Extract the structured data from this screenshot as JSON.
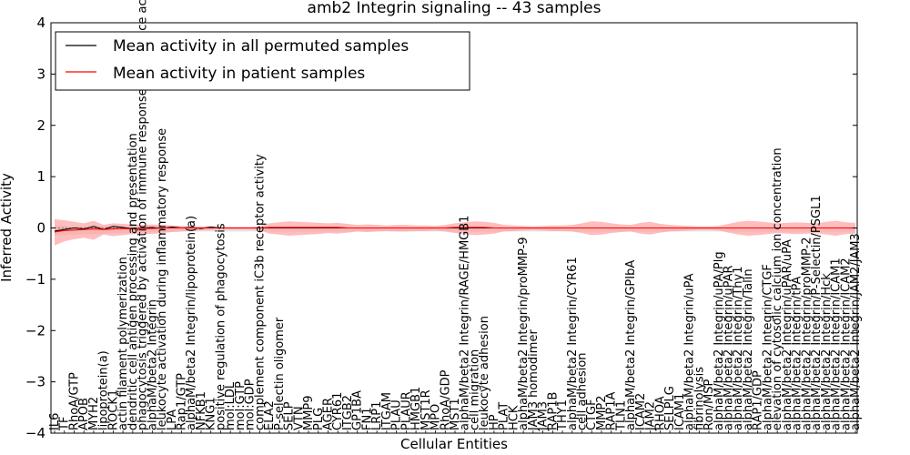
{
  "chart_data": {
    "type": "line",
    "title": "amb2 Integrin signaling -- 43 samples",
    "xlabel": "Cellular Entities",
    "ylabel": "Inferred Activity",
    "ylim": [
      -4,
      4
    ],
    "yticks": [
      -4,
      -3,
      -2,
      -1,
      0,
      1,
      2,
      3,
      4
    ],
    "ytick_labels": [
      "−4",
      "−3",
      "−2",
      "−1",
      "0",
      "1",
      "2",
      "3",
      "4"
    ],
    "legend_position": "top-left",
    "categories": [
      "IL6",
      "TF",
      "RhoA/GTP",
      "APOB",
      "MYH2",
      "lipoprotein(a)",
      "ROCK1",
      "actin filament polymerization",
      "dendritic cell antigen processing and presentation",
      "phagocytosis triggered by activation of immune response cell surface activating receptor",
      "alphaM/beta2 Integrin",
      "leukocyte activation during inflammatory response",
      "LPA",
      "Rap1/GTP",
      "alphaM/beta2 Integrin/lipoprotein(a)",
      "NFKB1",
      "KNG1",
      "positive regulation of phagocytosis",
      "mol:LDL",
      "mol:GTP",
      "mol:GDP",
      "complement component iC3b receptor activity",
      "ELA2",
      "P-selectin oligomer",
      "SELP",
      "VTN",
      "MMP9",
      "PLG",
      "AGER",
      "CYR61",
      "ITGB2",
      "GP1BA",
      "FN1",
      "LRP1",
      "ITGAM",
      "PLAU",
      "PLAUR",
      "HMGB1",
      "MST1R",
      "MPO",
      "RhoA/GDP",
      "MST1",
      "alphaM/beta2 Integrin/RAGE/HMGB1",
      "cell migration",
      "leukocyte adhesion",
      "HP",
      "PLAT",
      "HCK",
      "alphaM/beta2 Integrin/proMMP-9",
      "JAM3 homodimer",
      "JAM3",
      "RAP1B",
      "THY1",
      "alphaM/beta2 Integrin/CYR61",
      "cell adhesion",
      "CTGF",
      "MMP2",
      "RAP1A",
      "TLN1",
      "alphaM/beta2 Integrin/GPIbA",
      "ICAM2",
      "JAM2",
      "RHOA",
      "SELPLG",
      "ICAM1",
      "alphaM/beta2 Integrin/uPA",
      "fibrinolysis",
      "Ron/MSP",
      "alphaM/beta2 Integrin/uPA/Plg",
      "alphaM/beta2 Integrin/uPAR",
      "alphaM/beta2 Integrin/Thy1",
      "alphaM/beta2 Integrin/Talin",
      "RAP1/GDP",
      "alphaM/beta2 Integrin/CTGF",
      "elevation of cytosolic calcium ion concentration",
      "alphaM/beta2 Integrin/uPAR/uPA",
      "alphaM/beta2 Integrin/tPA",
      "alphaM/beta2 Integrin/proMMP-2",
      "alphaM/beta2 Integrin/P-Selectin/PSGL1",
      "alphaM/beta2 Integrin/Hck",
      "alphaM/beta2 Integrin/ICAM1",
      "alphaM/beta2 Integrin/ICAM2",
      "alphaM/beta2 Integrin/JAM2/JAM3"
    ],
    "series": [
      {
        "name": "Mean activity in all permuted samples",
        "color": "#000000",
        "values": [
          -0.06,
          -0.03,
          0.0,
          -0.02,
          0.03,
          -0.03,
          0.03,
          0.01,
          -0.02,
          0.0,
          0.01,
          -0.01,
          0.02,
          0.0,
          0.01,
          -0.01,
          0.02,
          0,
          0,
          0,
          0,
          0,
          0,
          0,
          0,
          0,
          0,
          0,
          0,
          0,
          0,
          0,
          0,
          0,
          0,
          0,
          0,
          0,
          0,
          0,
          0,
          0,
          0,
          0,
          0,
          0,
          0,
          0,
          0,
          0,
          0,
          0,
          0,
          0,
          0,
          0,
          0,
          0,
          0,
          0,
          0,
          0,
          0,
          0,
          0,
          0,
          0,
          0,
          0,
          0,
          0,
          0,
          0,
          0,
          0,
          0,
          0,
          0,
          0,
          0,
          0,
          0,
          0
        ]
      },
      {
        "name": "Mean activity in patient samples",
        "color": "#ff0000",
        "values": [
          -0.08,
          -0.05,
          -0.04,
          -0.03,
          -0.02,
          -0.03,
          -0.02,
          -0.01,
          -0.02,
          -0.01,
          -0.01,
          0,
          0,
          0,
          0,
          0,
          0,
          0,
          0,
          0,
          0,
          0,
          0.01,
          0.01,
          0.01,
          0.01,
          0.01,
          0.01,
          0.01,
          0.01,
          0,
          0,
          0,
          0,
          0,
          0,
          0,
          0,
          0,
          0,
          0,
          0.01,
          0.01,
          0.01,
          0.01,
          0,
          0,
          0,
          0,
          0,
          0,
          0,
          0,
          0,
          0,
          0,
          0,
          0,
          0,
          0,
          0,
          0,
          0,
          0,
          0,
          0,
          0,
          0,
          0,
          0,
          0,
          0,
          0,
          0,
          0,
          0,
          0,
          0,
          0,
          0,
          0,
          0,
          0
        ]
      }
    ],
    "patient_band": {
      "upper": [
        0.17,
        0.15,
        0.12,
        0.09,
        0.14,
        0.06,
        0.09,
        0.08,
        0.07,
        0.06,
        0.07,
        0.06,
        0.05,
        0.04,
        0.03,
        0.03,
        0.02,
        0.02,
        0.02,
        0.02,
        0.02,
        0.03,
        0.09,
        0.11,
        0.13,
        0.12,
        0.11,
        0.1,
        0.09,
        0.1,
        0.08,
        0.06,
        0.07,
        0.06,
        0.05,
        0.06,
        0.06,
        0.05,
        0.05,
        0.04,
        0.06,
        0.09,
        0.11,
        0.13,
        0.12,
        0.1,
        0.06,
        0.05,
        0.04,
        0.03,
        0.04,
        0.05,
        0.05,
        0.06,
        0.09,
        0.13,
        0.12,
        0.09,
        0.07,
        0.06,
        0.1,
        0.12,
        0.08,
        0.06,
        0.05,
        0.04,
        0.03,
        0.03,
        0.04,
        0.08,
        0.12,
        0.14,
        0.13,
        0.11,
        0.09,
        0.1,
        0.11,
        0.1,
        0.09,
        0.12,
        0.14,
        0.11,
        0.1
      ],
      "lower": [
        -0.34,
        -0.26,
        -0.22,
        -0.19,
        -0.23,
        -0.13,
        -0.16,
        -0.14,
        -0.12,
        -0.11,
        -0.12,
        -0.1,
        -0.08,
        -0.07,
        -0.06,
        -0.05,
        -0.04,
        -0.03,
        -0.03,
        -0.03,
        -0.03,
        -0.04,
        -0.11,
        -0.13,
        -0.15,
        -0.14,
        -0.13,
        -0.12,
        -0.1,
        -0.11,
        -0.09,
        -0.07,
        -0.08,
        -0.07,
        -0.06,
        -0.07,
        -0.07,
        -0.06,
        -0.06,
        -0.05,
        -0.07,
        -0.1,
        -0.12,
        -0.14,
        -0.13,
        -0.11,
        -0.07,
        -0.06,
        -0.05,
        -0.04,
        -0.05,
        -0.06,
        -0.06,
        -0.07,
        -0.1,
        -0.14,
        -0.13,
        -0.1,
        -0.08,
        -0.07,
        -0.11,
        -0.13,
        -0.09,
        -0.07,
        -0.06,
        -0.05,
        -0.04,
        -0.04,
        -0.05,
        -0.09,
        -0.13,
        -0.15,
        -0.14,
        -0.12,
        -0.1,
        -0.11,
        -0.12,
        -0.11,
        -0.1,
        -0.13,
        -0.15,
        -0.12,
        -0.11
      ]
    },
    "permuted_band": {
      "upper": [
        0.04,
        0.04,
        0.03,
        0.03,
        0.03,
        0.03,
        0.03,
        0.03,
        0.02,
        0.02,
        0.02,
        0.02,
        0.02,
        0.02,
        0.01,
        0.01,
        0.01,
        0.01,
        0.01,
        0.01,
        0.01,
        0.01,
        0.01,
        0.01,
        0.01,
        0.01,
        0.01,
        0.01,
        0.01,
        0.01,
        0.01,
        0.01,
        0.01,
        0.01,
        0.01,
        0.01,
        0.01,
        0.01,
        0.01,
        0.01,
        0.01,
        0.01,
        0.01,
        0.01,
        0.01,
        0.01,
        0.01,
        0.01,
        0.01,
        0.01,
        0.01,
        0.01,
        0.01,
        0.01,
        0.01,
        0.01,
        0.01,
        0.01,
        0.01,
        0.01,
        0.01,
        0.01,
        0.01,
        0.01,
        0.01,
        0.01,
        0.01,
        0.01,
        0.01,
        0.01,
        0.01,
        0.01,
        0.01,
        0.01,
        0.01,
        0.01,
        0.01,
        0.01,
        0.01,
        0.01,
        0.01,
        0.01,
        0.01
      ],
      "lower": [
        -0.15,
        -0.14,
        -0.13,
        -0.12,
        -0.12,
        -0.11,
        -0.1,
        -0.1,
        -0.09,
        -0.09,
        -0.08,
        -0.08,
        -0.08,
        -0.07,
        -0.07,
        -0.07,
        -0.07,
        -0.07,
        -0.07,
        -0.07,
        -0.07,
        -0.07,
        -0.07,
        -0.07,
        -0.07,
        -0.07,
        -0.07,
        -0.07,
        -0.07,
        -0.07,
        -0.07,
        -0.07,
        -0.07,
        -0.07,
        -0.07,
        -0.07,
        -0.07,
        -0.07,
        -0.07,
        -0.07,
        -0.07,
        -0.07,
        -0.07,
        -0.07,
        -0.07,
        -0.07,
        -0.07,
        -0.07,
        -0.07,
        -0.07,
        -0.07,
        -0.07,
        -0.07,
        -0.07,
        -0.07,
        -0.07,
        -0.07,
        -0.07,
        -0.07,
        -0.07,
        -0.07,
        -0.07,
        -0.07,
        -0.07,
        -0.07,
        -0.07,
        -0.07,
        -0.07,
        -0.07,
        -0.07,
        -0.07,
        -0.07,
        -0.07,
        -0.07,
        -0.07,
        -0.07,
        -0.07,
        -0.07,
        -0.07,
        -0.07,
        -0.07,
        -0.07,
        -0.07
      ]
    },
    "colors": {
      "patient_band": "#ff9999",
      "permuted_band": "#d9d9d9",
      "zero_line": "#808080"
    }
  }
}
